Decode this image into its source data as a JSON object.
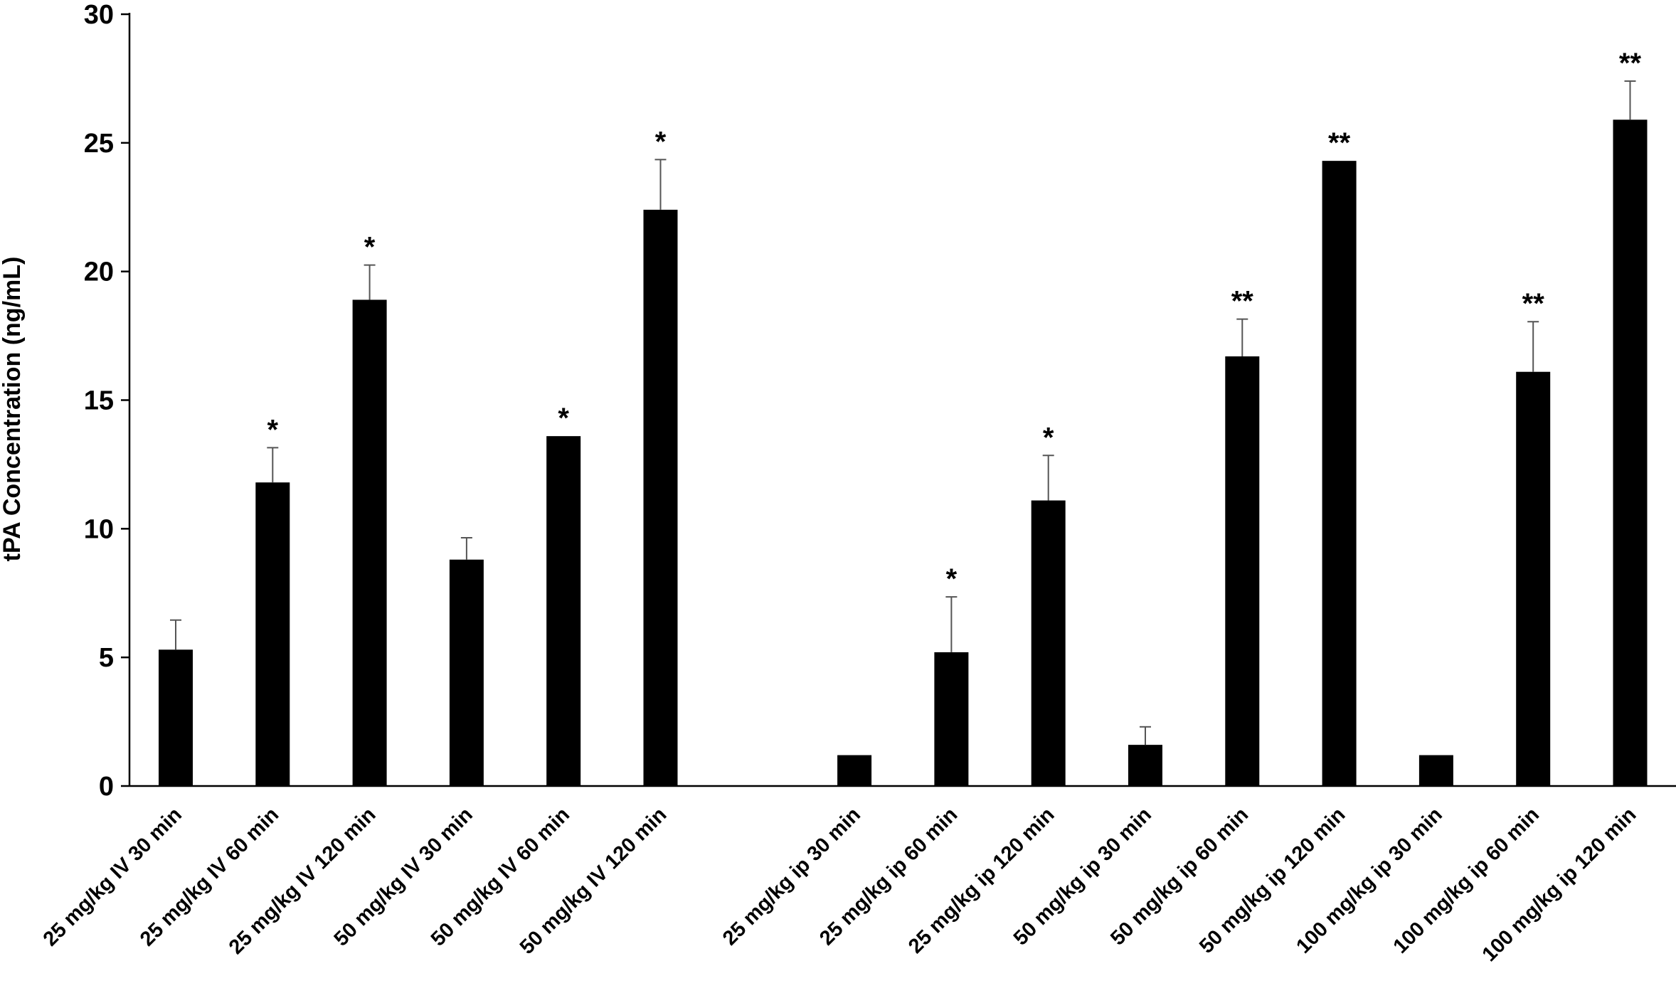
{
  "chart_data": {
    "type": "bar",
    "title": "",
    "xlabel": "",
    "ylabel": "tPA Concentration (ng/mL)",
    "ylim": [
      0,
      30
    ],
    "yticks": [
      0,
      5,
      10,
      15,
      20,
      25,
      30
    ],
    "grid": false,
    "legend": "none",
    "bar_color": "#000000",
    "categories": [
      "25 mg/kg IV 30 min",
      "25 mg/kg IV 60 min",
      "25 mg/kg IV 120 min",
      "50 mg/kg IV 30 min",
      "50 mg/kg IV 60 min",
      "50 mg/kg IV 120 min",
      "",
      "25 mg/kg ip 30 min",
      "25 mg/kg ip 60 min",
      "25 mg/kg ip 120 min",
      "50 mg/kg ip 30 min",
      "50 mg/kg ip 60 min",
      "50 mg/kg ip 120 min",
      "100 mg/kg ip 30 min",
      "100 mg/kg ip 60 min",
      "100 mg/kg ip 120 min"
    ],
    "values": [
      5.3,
      11.8,
      18.9,
      8.8,
      13.6,
      22.4,
      null,
      1.2,
      5.2,
      11.1,
      1.6,
      16.7,
      24.3,
      1.2,
      16.1,
      25.9
    ],
    "errors": [
      1.15,
      1.35,
      1.35,
      0.85,
      0,
      1.95,
      null,
      0,
      2.15,
      1.75,
      0.7,
      1.45,
      0,
      0,
      1.95,
      1.5
    ],
    "significance": [
      "",
      "*",
      "*",
      "",
      "*",
      "*",
      "",
      "",
      "*",
      "*",
      "",
      "**",
      "**",
      "",
      "**",
      "**"
    ]
  }
}
